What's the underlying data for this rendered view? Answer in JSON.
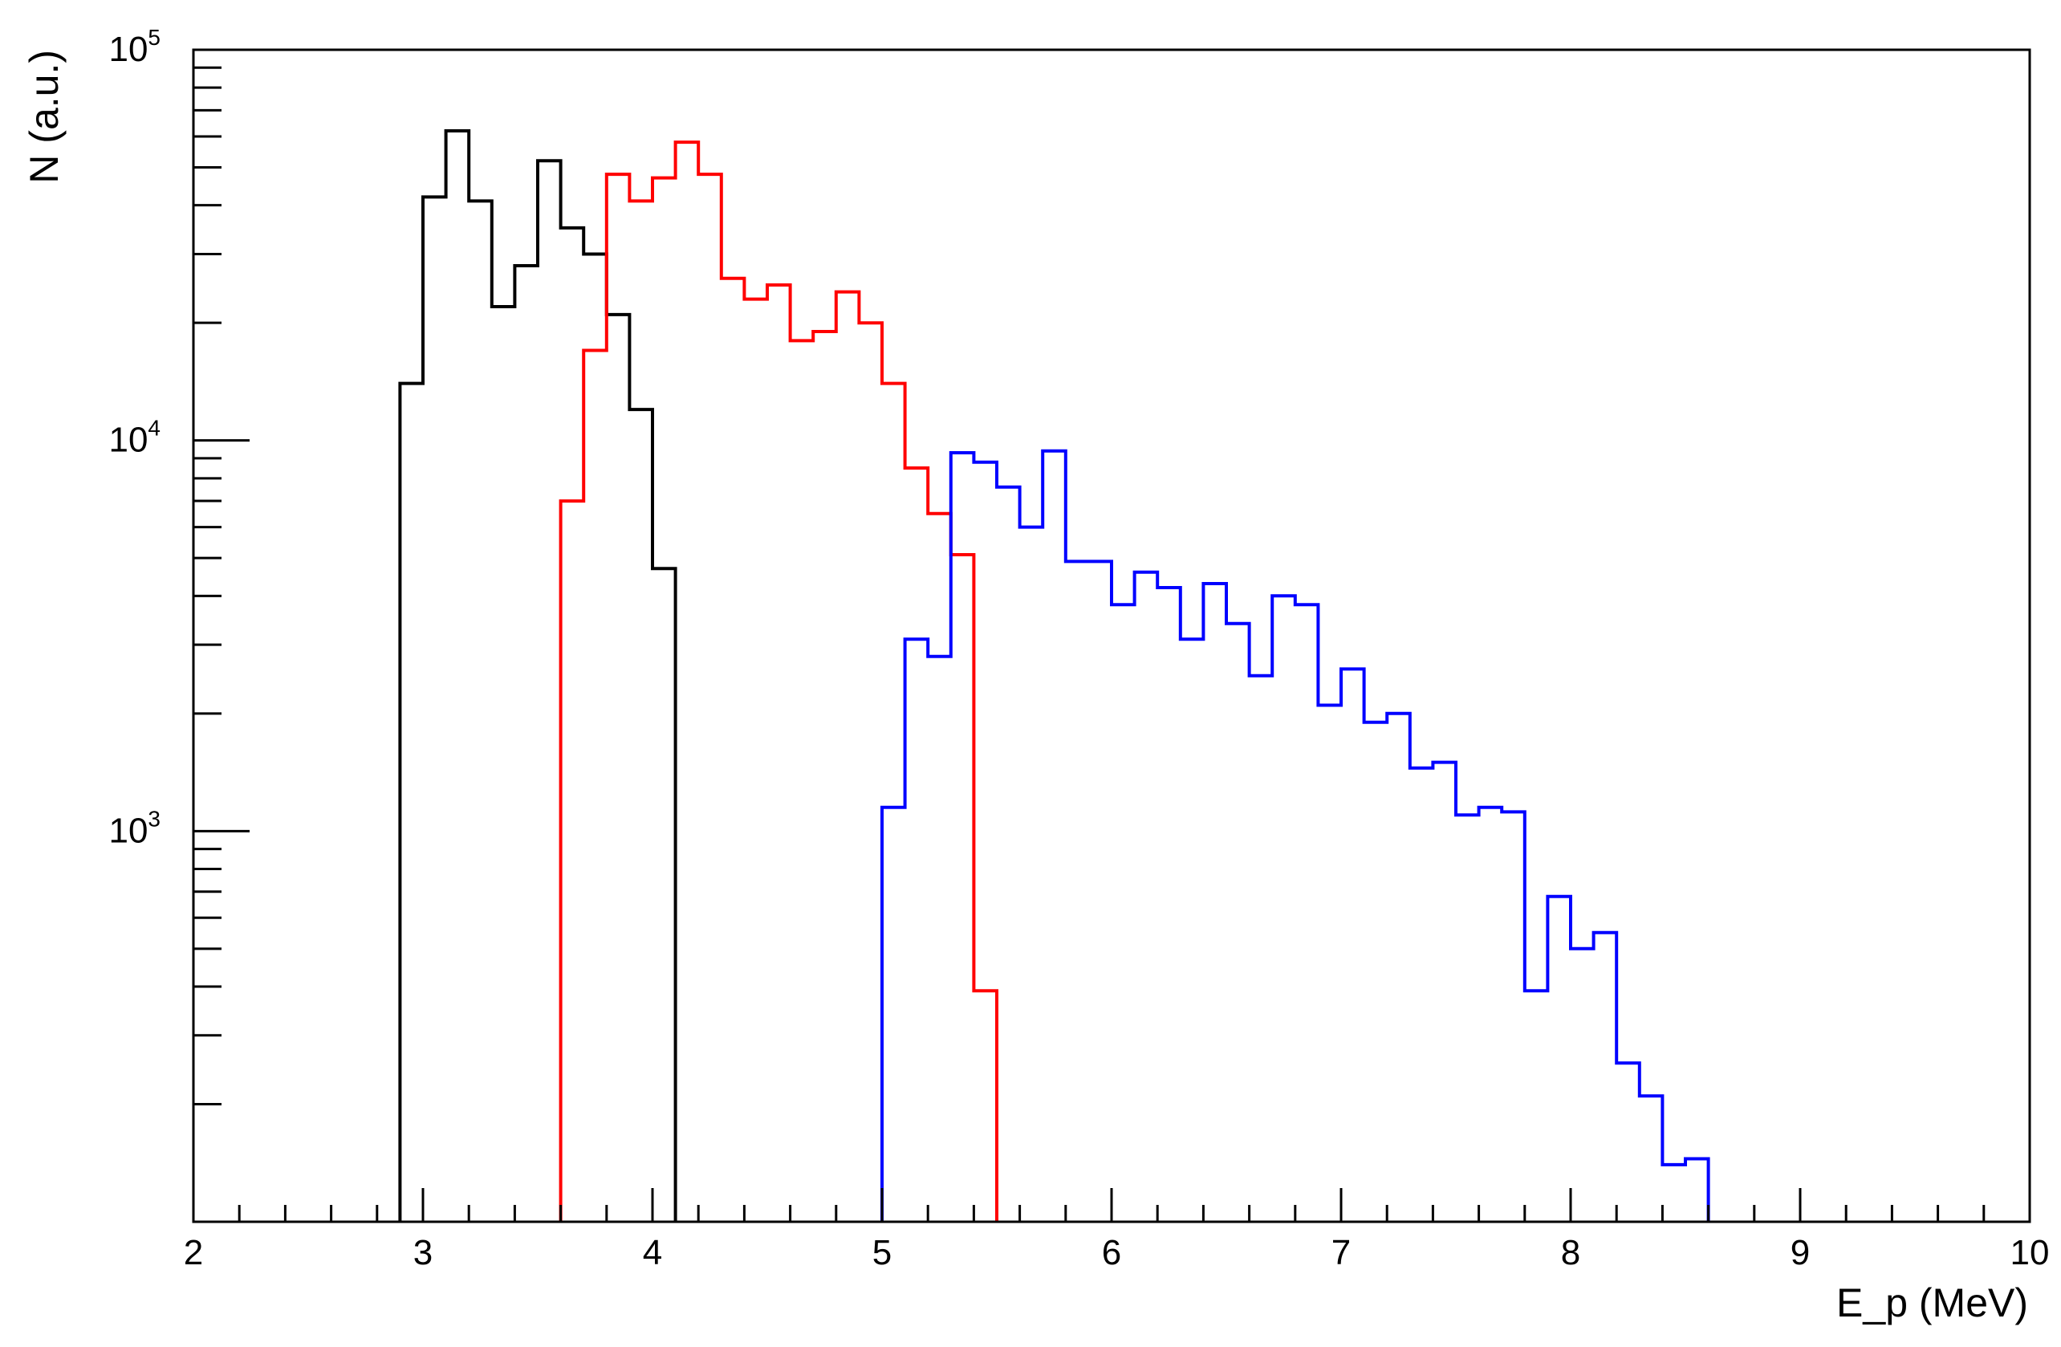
{
  "chart_data": {
    "type": "histogram",
    "title": "",
    "xlabel": "E_p (MeV)",
    "ylabel": "N (a.u.)",
    "xlim": [
      2,
      10
    ],
    "ylim": [
      100,
      100000
    ],
    "yscale": "log",
    "grid": false,
    "bin_width": 0.1,
    "x_ticks": [
      {
        "value": 2,
        "label": "2"
      },
      {
        "value": 3,
        "label": "3"
      },
      {
        "value": 4,
        "label": "4"
      },
      {
        "value": 5,
        "label": "5"
      },
      {
        "value": 6,
        "label": "6"
      },
      {
        "value": 7,
        "label": "7"
      },
      {
        "value": 8,
        "label": "8"
      },
      {
        "value": 9,
        "label": "9"
      },
      {
        "value": 10,
        "label": "10"
      }
    ],
    "y_ticks": [
      {
        "value": 1000,
        "base": "10",
        "exp": "3"
      },
      {
        "value": 10000,
        "base": "10",
        "exp": "4"
      },
      {
        "value": 100000,
        "base": "10",
        "exp": "5"
      }
    ],
    "series": [
      {
        "color": "#000000",
        "bin_edges": [
          2.9,
          3.0,
          3.1,
          3.2,
          3.3,
          3.4,
          3.5,
          3.6,
          3.7,
          3.8,
          3.9,
          4.0,
          4.1
        ],
        "values": [
          14000,
          42000,
          62000,
          41000,
          22000,
          28000,
          52000,
          35000,
          30000,
          21000,
          12000,
          4700
        ]
      },
      {
        "color": "#ff0000",
        "bin_edges": [
          3.6,
          3.7,
          3.8,
          3.9,
          4.0,
          4.1,
          4.2,
          4.3,
          4.4,
          4.5,
          4.6,
          4.7,
          4.8,
          4.9,
          5.0,
          5.1,
          5.2,
          5.3,
          5.4,
          5.5
        ],
        "values": [
          7000,
          17000,
          48000,
          41000,
          47000,
          58000,
          48000,
          26000,
          23000,
          25000,
          18000,
          19000,
          24000,
          20000,
          14000,
          8500,
          6500,
          5100,
          390
        ]
      },
      {
        "color": "#0000ff",
        "bin_edges": [
          5.0,
          5.1,
          5.2,
          5.3,
          5.4,
          5.5,
          5.6,
          5.7,
          5.8,
          5.9,
          6.0,
          6.1,
          6.2,
          6.3,
          6.4,
          6.5,
          6.6,
          6.7,
          6.8,
          6.9,
          7.0,
          7.1,
          7.2,
          7.3,
          7.4,
          7.5,
          7.6,
          7.7,
          7.8,
          7.9,
          8.0,
          8.1,
          8.2,
          8.3,
          8.4,
          8.5,
          8.6
        ],
        "values": [
          1150,
          3100,
          2800,
          9300,
          8800,
          7600,
          6000,
          9400,
          4900,
          4900,
          3800,
          4600,
          4200,
          3100,
          4300,
          3400,
          2500,
          4000,
          3800,
          2100,
          2600,
          1900,
          2000,
          1450,
          1500,
          1100,
          1150,
          1120,
          390,
          680,
          500,
          550,
          255,
          210,
          140,
          145
        ]
      }
    ]
  }
}
